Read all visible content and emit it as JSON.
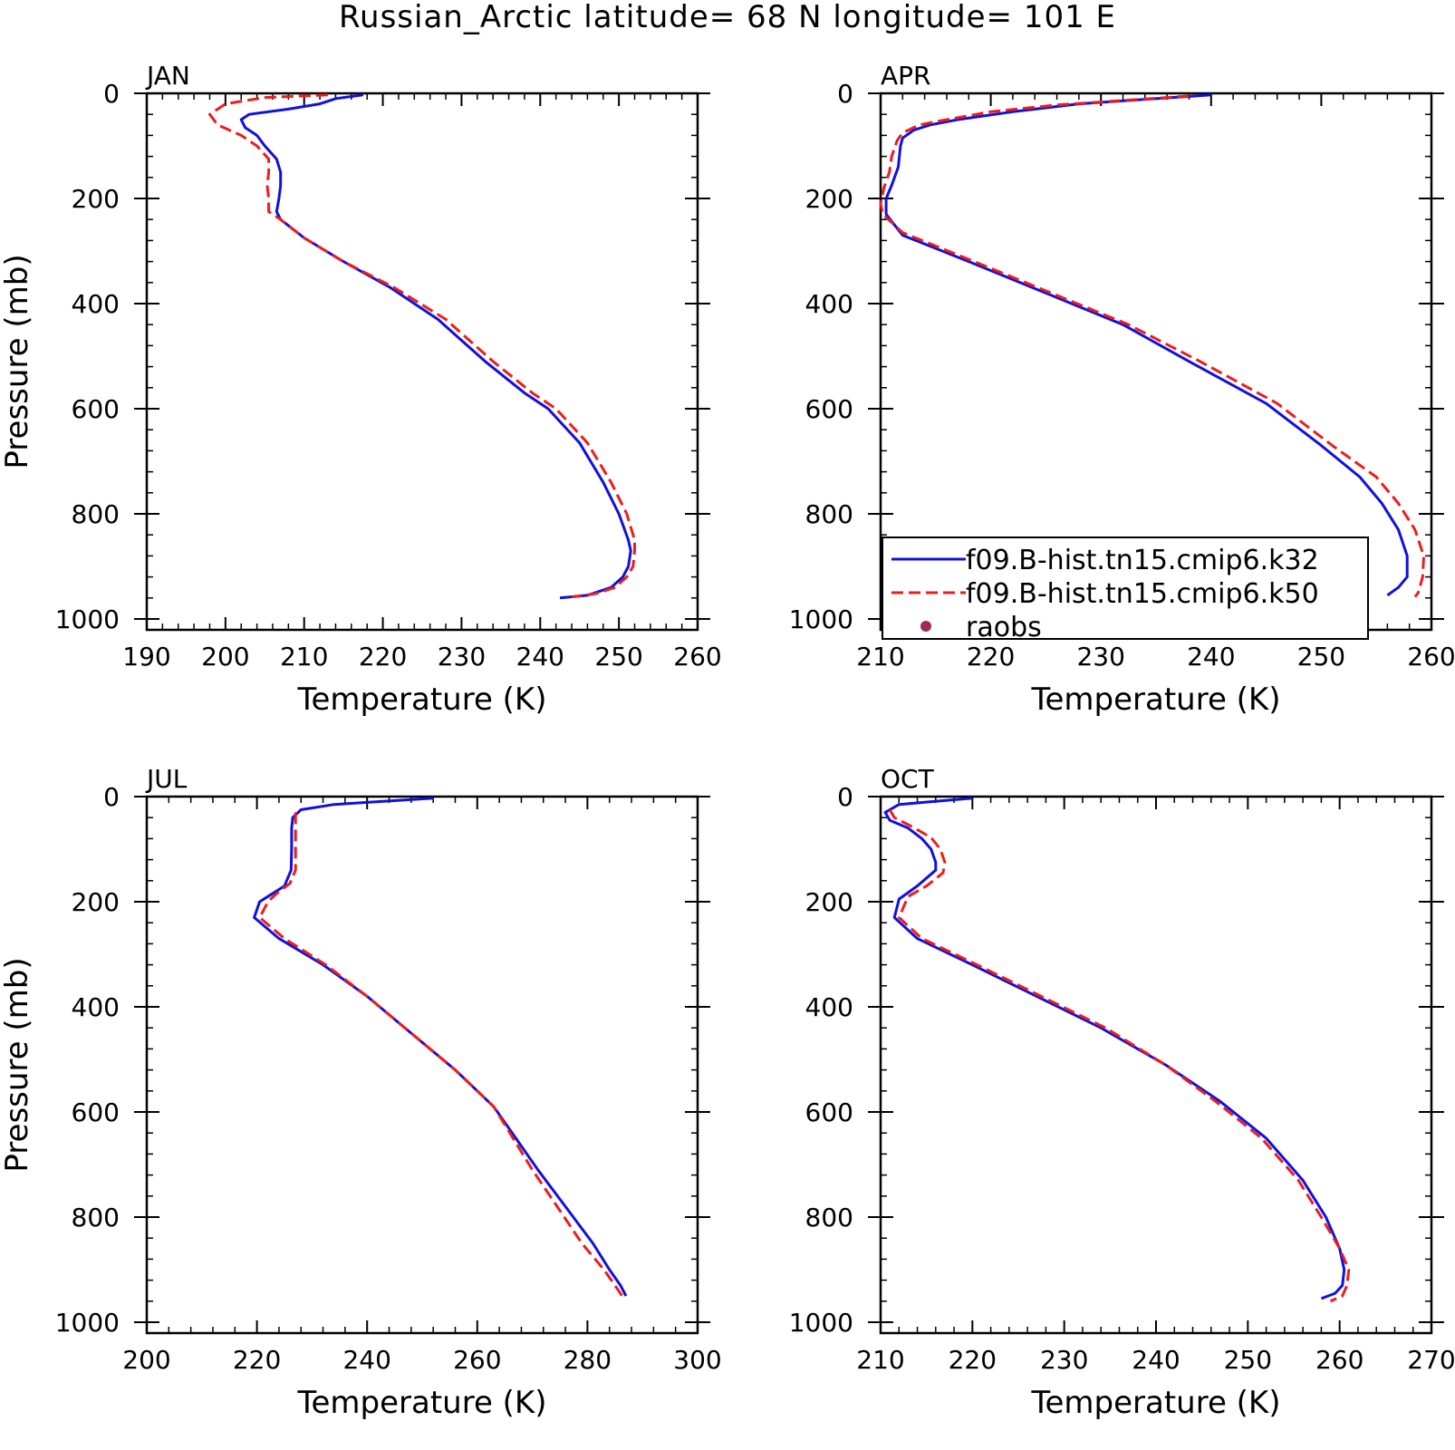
{
  "title": "Russian_Arctic  latitude= 68 N longitude= 101 E",
  "colors": {
    "k32": "#1010e0",
    "k50": "#ee1c1c",
    "raobs": "#a0285a"
  },
  "legend": {
    "panel": "APR",
    "entries": [
      {
        "key": "k32",
        "label": "f09.B-hist.tn15.cmip6.k32",
        "style": "solid"
      },
      {
        "key": "k50",
        "label": "f09.B-hist.tn15.cmip6.k50",
        "style": "dashed"
      },
      {
        "key": "raobs",
        "label": "raobs",
        "style": "dot"
      }
    ]
  },
  "chart_data": [
    {
      "type": "line",
      "panel": "JAN",
      "label": "JAN",
      "xlabel": "Temperature (K)",
      "ylabel": "Pressure (mb)",
      "xlim": [
        190,
        260
      ],
      "ylim": [
        1000,
        0
      ],
      "xticks": [
        190,
        200,
        210,
        220,
        230,
        240,
        250,
        260
      ],
      "yticks": [
        0,
        200,
        400,
        600,
        800,
        1000
      ],
      "series": [
        {
          "key": "k32",
          "name": "f09.B-hist.tn15.cmip6.k32",
          "points": [
            [
              217.5,
              3
            ],
            [
              214,
              10
            ],
            [
              212,
              20
            ],
            [
              208,
              30
            ],
            [
              203,
              40
            ],
            [
              202,
              50
            ],
            [
              202.5,
              65
            ],
            [
              204,
              80
            ],
            [
              205,
              100
            ],
            [
              206.5,
              125
            ],
            [
              207,
              150
            ],
            [
              207,
              175
            ],
            [
              206.8,
              200
            ],
            [
              206.5,
              225
            ],
            [
              207,
              240
            ],
            [
              210,
              275
            ],
            [
              215,
              320
            ],
            [
              221,
              370
            ],
            [
              227,
              430
            ],
            [
              233,
              510
            ],
            [
              238,
              570
            ],
            [
              241,
              600
            ],
            [
              245,
              665
            ],
            [
              248,
              740
            ],
            [
              250,
              800
            ],
            [
              251.2,
              850
            ],
            [
              251.5,
              870
            ],
            [
              251.2,
              900
            ],
            [
              250.5,
              920
            ],
            [
              249,
              940
            ],
            [
              246,
              955
            ],
            [
              242.5,
              960
            ]
          ]
        },
        {
          "key": "k50",
          "name": "f09.B-hist.tn15.cmip6.k50",
          "points": [
            [
              213,
              3
            ],
            [
              205,
              8
            ],
            [
              200,
              20
            ],
            [
              198,
              40
            ],
            [
              199,
              60
            ],
            [
              202,
              80
            ],
            [
              204,
              100
            ],
            [
              205.5,
              125
            ],
            [
              205.5,
              150
            ],
            [
              205.3,
              175
            ],
            [
              205.5,
              200
            ],
            [
              205.5,
              225
            ],
            [
              207,
              240
            ],
            [
              210,
              275
            ],
            [
              215,
              320
            ],
            [
              221.5,
              370
            ],
            [
              228,
              430
            ],
            [
              234,
              510
            ],
            [
              239,
              570
            ],
            [
              242,
              600
            ],
            [
              246,
              665
            ],
            [
              249,
              740
            ],
            [
              251,
              800
            ],
            [
              252,
              850
            ],
            [
              252,
              870
            ],
            [
              251.8,
              900
            ],
            [
              251,
              920
            ],
            [
              249.5,
              940
            ],
            [
              247,
              952
            ],
            [
              244,
              958
            ]
          ]
        }
      ]
    },
    {
      "type": "line",
      "panel": "APR",
      "label": "APR",
      "xlabel": "Temperature (K)",
      "ylabel": "",
      "xlim": [
        210,
        260
      ],
      "ylim": [
        1000,
        0
      ],
      "xticks": [
        210,
        220,
        230,
        240,
        250,
        260
      ],
      "yticks": [
        0,
        200,
        400,
        600,
        800,
        1000
      ],
      "series": [
        {
          "key": "k32",
          "name": "f09.B-hist.tn15.cmip6.k32",
          "points": [
            [
              240,
              3
            ],
            [
              228,
              20
            ],
            [
              222,
              35
            ],
            [
              217,
              50
            ],
            [
              214.5,
              60
            ],
            [
              213,
              70
            ],
            [
              212,
              85
            ],
            [
              211.8,
              100
            ],
            [
              211.6,
              140
            ],
            [
              211,
              175
            ],
            [
              210.5,
              200
            ],
            [
              210.5,
              230
            ],
            [
              212,
              270
            ],
            [
              218,
              320
            ],
            [
              225,
              380
            ],
            [
              232,
              440
            ],
            [
              238,
              510
            ],
            [
              245,
              590
            ],
            [
              250,
              670
            ],
            [
              253.5,
              730
            ],
            [
              255.5,
              780
            ],
            [
              257,
              830
            ],
            [
              257.8,
              880
            ],
            [
              257.8,
              920
            ],
            [
              257,
              940
            ],
            [
              256,
              955
            ]
          ]
        },
        {
          "key": "k50",
          "name": "f09.B-hist.tn15.cmip6.k50",
          "points": [
            [
              238,
              5
            ],
            [
              226,
              22
            ],
            [
              220,
              35
            ],
            [
              216,
              50
            ],
            [
              213.5,
              60
            ],
            [
              212,
              75
            ],
            [
              211.5,
              90
            ],
            [
              211,
              120
            ],
            [
              210.8,
              150
            ],
            [
              210.3,
              180
            ],
            [
              210,
              210
            ],
            [
              210.2,
              230
            ],
            [
              212,
              265
            ],
            [
              218.5,
              320
            ],
            [
              225.5,
              380
            ],
            [
              232.5,
              440
            ],
            [
              239,
              510
            ],
            [
              246,
              590
            ],
            [
              251,
              670
            ],
            [
              255,
              730
            ],
            [
              257,
              780
            ],
            [
              258.5,
              830
            ],
            [
              259.3,
              880
            ],
            [
              259.2,
              920
            ],
            [
              258.8,
              950
            ],
            [
              258.5,
              958
            ]
          ]
        }
      ]
    },
    {
      "type": "line",
      "panel": "JUL",
      "label": "JUL",
      "xlabel": "Temperature (K)",
      "ylabel": "Pressure (mb)",
      "xlim": [
        200,
        300
      ],
      "ylim": [
        1000,
        0
      ],
      "xticks": [
        200,
        220,
        240,
        260,
        280,
        300
      ],
      "yticks": [
        0,
        200,
        400,
        600,
        800,
        1000
      ],
      "series": [
        {
          "key": "k32",
          "name": "f09.B-hist.tn15.cmip6.k32",
          "points": [
            [
              252,
              3
            ],
            [
              234,
              15
            ],
            [
              228,
              25
            ],
            [
              226.5,
              40
            ],
            [
              226.3,
              60
            ],
            [
              226.3,
              100
            ],
            [
              226.2,
              140
            ],
            [
              225,
              170
            ],
            [
              222,
              190
            ],
            [
              220.5,
              200
            ],
            [
              219.5,
              230
            ],
            [
              224,
              270
            ],
            [
              232,
              320
            ],
            [
              240,
              380
            ],
            [
              248,
              450
            ],
            [
              256,
              520
            ],
            [
              263,
              590
            ],
            [
              267,
              650
            ],
            [
              271,
              710
            ],
            [
              276,
              780
            ],
            [
              281,
              850
            ],
            [
              284,
              900
            ],
            [
              286,
              930
            ],
            [
              287,
              950
            ]
          ]
        },
        {
          "key": "k50",
          "name": "f09.B-hist.tn15.cmip6.k50",
          "points": [
            [
              227,
              30
            ],
            [
              227,
              60
            ],
            [
              227,
              100
            ],
            [
              227,
              140
            ],
            [
              226,
              165
            ],
            [
              223.5,
              185
            ],
            [
              222,
              200
            ],
            [
              220.5,
              230
            ],
            [
              225,
              270
            ],
            [
              232.5,
              320
            ],
            [
              240,
              380
            ],
            [
              248,
              450
            ],
            [
              256,
              520
            ],
            [
              263,
              590
            ],
            [
              266.5,
              650
            ],
            [
              270,
              710
            ],
            [
              274.5,
              780
            ],
            [
              279,
              850
            ],
            [
              283,
              900
            ],
            [
              285,
              930
            ],
            [
              286.3,
              950
            ]
          ]
        }
      ]
    },
    {
      "type": "line",
      "panel": "OCT",
      "label": "OCT",
      "xlabel": "Temperature (K)",
      "ylabel": "",
      "xlim": [
        210,
        270
      ],
      "ylim": [
        1000,
        0
      ],
      "xticks": [
        210,
        220,
        230,
        240,
        250,
        260,
        270
      ],
      "yticks": [
        0,
        200,
        400,
        600,
        800,
        1000
      ],
      "series": [
        {
          "key": "k32",
          "name": "f09.B-hist.tn15.cmip6.k32",
          "points": [
            [
              220,
              3
            ],
            [
              212,
              15
            ],
            [
              210.5,
              30
            ],
            [
              211,
              45
            ],
            [
              213,
              60
            ],
            [
              214.5,
              80
            ],
            [
              215.5,
              100
            ],
            [
              216,
              125
            ],
            [
              216,
              140
            ],
            [
              214,
              170
            ],
            [
              212,
              195
            ],
            [
              211.8,
              210
            ],
            [
              211.5,
              230
            ],
            [
              214,
              270
            ],
            [
              220,
              320
            ],
            [
              227,
              380
            ],
            [
              234,
              440
            ],
            [
              241,
              510
            ],
            [
              247,
              580
            ],
            [
              252,
              650
            ],
            [
              256,
              730
            ],
            [
              258.5,
              800
            ],
            [
              260,
              860
            ],
            [
              260.5,
              900
            ],
            [
              260.3,
              930
            ],
            [
              259.5,
              945
            ],
            [
              258,
              955
            ]
          ]
        },
        {
          "key": "k50",
          "name": "f09.B-hist.tn15.cmip6.k50",
          "points": [
            [
              211,
              25
            ],
            [
              211.5,
              40
            ],
            [
              213.5,
              58
            ],
            [
              215.5,
              78
            ],
            [
              216.5,
              100
            ],
            [
              217,
              125
            ],
            [
              216.8,
              145
            ],
            [
              215,
              170
            ],
            [
              213,
              190
            ],
            [
              212.5,
              210
            ],
            [
              212,
              230
            ],
            [
              214.5,
              270
            ],
            [
              220.5,
              320
            ],
            [
              227.5,
              380
            ],
            [
              234.5,
              440
            ],
            [
              241,
              510
            ],
            [
              246.5,
              580
            ],
            [
              251.5,
              650
            ],
            [
              255.5,
              730
            ],
            [
              258,
              800
            ],
            [
              260,
              860
            ],
            [
              261,
              900
            ],
            [
              260.8,
              930
            ],
            [
              260.3,
              950
            ],
            [
              259,
              960
            ]
          ]
        }
      ]
    }
  ]
}
